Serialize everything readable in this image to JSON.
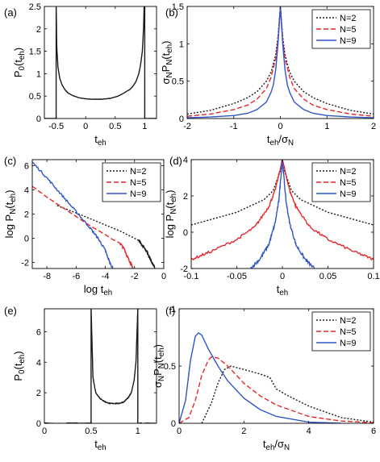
{
  "colors": {
    "N2": "#1a1a1a",
    "N5": "#e8262a",
    "N9": "#2f56c9",
    "P0": "#1a1a1a"
  },
  "chart_data": [
    {
      "id": "a",
      "type": "line",
      "panel_label": "(a)",
      "xlabel_main": "t",
      "xlabel_sub": "eh",
      "ylabel_parts": [
        [
          "P",
          ""
        ],
        [
          "0",
          "sub"
        ],
        [
          "(t",
          ""
        ],
        [
          "eh",
          "sub"
        ],
        [
          ")",
          ""
        ]
      ],
      "xlim": [
        -0.7,
        1.2
      ],
      "ylim": [
        0,
        2.5
      ],
      "xticks": [
        -0.5,
        0,
        0.5,
        1
      ],
      "xticklabels": [
        "-0.5",
        "0",
        "0.5",
        "1"
      ],
      "yticks": [
        0,
        0.5,
        1,
        1.5,
        2,
        2.5
      ],
      "yticklabels": [
        "0",
        "0.5",
        "1",
        "1.5",
        "2",
        "2.5"
      ],
      "legend": [],
      "series": [
        {
          "color": "P0",
          "dash": "",
          "noise": 0.01,
          "x": [
            -0.7,
            -0.52,
            -0.5,
            -0.5,
            -0.49,
            -0.47,
            -0.44,
            -0.4,
            -0.35,
            -0.3,
            -0.2,
            -0.1,
            0,
            0.1,
            0.2,
            0.25,
            0.35,
            0.45,
            0.55,
            0.65,
            0.75,
            0.8,
            0.85,
            0.9,
            0.93,
            0.96,
            0.98,
            0.99,
            1.0,
            1.0,
            1.03,
            1.2
          ],
          "y": [
            0,
            0,
            0,
            2.5,
            1.6,
            1.15,
            0.9,
            0.75,
            0.64,
            0.57,
            0.5,
            0.46,
            0.44,
            0.43,
            0.43,
            0.43,
            0.44,
            0.46,
            0.5,
            0.57,
            0.65,
            0.72,
            0.82,
            1.0,
            1.2,
            1.5,
            2.0,
            2.5,
            2.5,
            0,
            0,
            0
          ]
        }
      ]
    },
    {
      "id": "b",
      "type": "line",
      "panel_label": "(b)",
      "xlabel_parts": [
        [
          "t",
          ""
        ],
        [
          "eh",
          "sub"
        ],
        [
          "/σ",
          ""
        ],
        [
          "N",
          "sub"
        ]
      ],
      "ylabel_parts": [
        [
          "σ",
          ""
        ],
        [
          "N",
          "sub"
        ],
        [
          "P",
          ""
        ],
        [
          "N",
          "sub"
        ],
        [
          "(t",
          ""
        ],
        [
          "eh",
          "sub"
        ],
        [
          ")",
          ""
        ]
      ],
      "xlim": [
        -2,
        2
      ],
      "ylim": [
        0,
        1.5
      ],
      "xticks": [
        -2,
        -1,
        0,
        1,
        2
      ],
      "xticklabels": [
        "-2",
        "-1",
        "0",
        "1",
        "2"
      ],
      "yticks": [
        0,
        0.5,
        1,
        1.5
      ],
      "yticklabels": [
        "0",
        "0.5",
        "1",
        "1.5"
      ],
      "legend": [
        "N=2",
        "N=5",
        "N=9"
      ],
      "series": [
        {
          "color": "N2",
          "dash": "2,2",
          "noise": 0.004,
          "x": [
            -2,
            -1.5,
            -1,
            -0.7,
            -0.5,
            -0.3,
            -0.2,
            -0.1,
            -0.05,
            0,
            0.05,
            0.1,
            0.2,
            0.3,
            0.5,
            0.7,
            1,
            1.5,
            2
          ],
          "y": [
            0.06,
            0.11,
            0.2,
            0.28,
            0.36,
            0.5,
            0.62,
            0.85,
            1.1,
            1.5,
            1.1,
            0.85,
            0.62,
            0.5,
            0.36,
            0.28,
            0.2,
            0.11,
            0.06
          ]
        },
        {
          "color": "N5",
          "dash": "6,3",
          "noise": 0,
          "x": [
            -2,
            -1.5,
            -1,
            -0.7,
            -0.5,
            -0.3,
            -0.2,
            -0.1,
            -0.05,
            0,
            0.05,
            0.1,
            0.2,
            0.3,
            0.5,
            0.7,
            1,
            1.5,
            2
          ],
          "y": [
            0.03,
            0.06,
            0.12,
            0.18,
            0.26,
            0.4,
            0.55,
            0.8,
            1.05,
            1.5,
            1.05,
            0.8,
            0.55,
            0.4,
            0.26,
            0.18,
            0.12,
            0.06,
            0.03
          ]
        },
        {
          "color": "N9",
          "dash": "",
          "noise": 0,
          "x": [
            -2,
            -1.5,
            -1,
            -0.7,
            -0.5,
            -0.3,
            -0.2,
            -0.15,
            -0.1,
            -0.05,
            0,
            0.05,
            0.1,
            0.15,
            0.2,
            0.3,
            0.5,
            0.7,
            1,
            1.5,
            2
          ],
          "y": [
            0.01,
            0.02,
            0.04,
            0.07,
            0.12,
            0.22,
            0.35,
            0.45,
            0.65,
            1.0,
            1.5,
            1.0,
            0.65,
            0.45,
            0.35,
            0.22,
            0.12,
            0.07,
            0.04,
            0.02,
            0.01
          ]
        }
      ]
    },
    {
      "id": "c",
      "type": "line",
      "panel_label": "(c)",
      "xlabel_parts": [
        [
          "log t",
          ""
        ],
        [
          "eh",
          "sub"
        ]
      ],
      "ylabel_parts": [
        [
          "log P",
          ""
        ],
        [
          "N",
          "sub"
        ],
        [
          "(t",
          ""
        ],
        [
          "eh",
          "sub"
        ],
        [
          ")",
          ""
        ]
      ],
      "xlim": [
        -9,
        0
      ],
      "ylim": [
        -2.5,
        6.5
      ],
      "xticks": [
        -8,
        -6,
        -4,
        -2,
        0
      ],
      "xticklabels": [
        "-8",
        "-6",
        "-4",
        "-2",
        "0"
      ],
      "yticks": [
        -2,
        0,
        2,
        4,
        6
      ],
      "yticklabels": [
        "-2",
        "0",
        "2",
        "4",
        "6"
      ],
      "legend": [
        "N=2",
        "N=5",
        "N=9"
      ],
      "series": [
        {
          "color": "N2",
          "dash": "2,2",
          "noise": 0,
          "x": [
            -7.3,
            -6,
            -5,
            -4,
            -3,
            -2.5,
            -2,
            -1.7
          ],
          "y": [
            2.7,
            2.1,
            1.6,
            1.1,
            0.6,
            0.3,
            0,
            -0.2
          ]
        },
        {
          "color": "N2",
          "dash": "",
          "noise": 0.12,
          "x": [
            -1.7,
            -1.5,
            -1.2,
            -1,
            -0.8,
            -0.6
          ],
          "y": [
            -0.2,
            -0.5,
            -1.0,
            -1.5,
            -2.0,
            -2.5
          ]
        },
        {
          "color": "N5",
          "dash": "6,3",
          "noise": 0,
          "x": [
            -9,
            -8,
            -7,
            -6,
            -5,
            -4,
            -3.5,
            -3
          ],
          "y": [
            4.3,
            3.4,
            2.6,
            1.8,
            1.0,
            0.3,
            -0.1,
            -0.4
          ]
        },
        {
          "color": "N5",
          "dash": "",
          "noise": 0.12,
          "x": [
            -3,
            -2.7,
            -2.5,
            -2.3,
            -2.1
          ],
          "y": [
            -0.4,
            -0.9,
            -1.5,
            -2.0,
            -2.5
          ]
        },
        {
          "color": "N9",
          "dash": "",
          "noise": 0.1,
          "x": [
            -9,
            -8,
            -7,
            -6,
            -5,
            -4.5,
            -4,
            -3.8,
            -3.5
          ],
          "y": [
            6.3,
            5.0,
            3.6,
            2.2,
            0.8,
            0.0,
            -1.0,
            -1.7,
            -2.5
          ]
        }
      ]
    },
    {
      "id": "d",
      "type": "line",
      "panel_label": "(d)",
      "xlabel_parts": [
        [
          "t",
          ""
        ],
        [
          "eh",
          "sub"
        ]
      ],
      "ylabel_parts": [
        [
          "log P",
          ""
        ],
        [
          "N",
          "sub"
        ],
        [
          "(t",
          ""
        ],
        [
          "eh",
          "sub"
        ],
        [
          ")",
          ""
        ]
      ],
      "xlim": [
        -0.1,
        0.1
      ],
      "ylim": [
        -2,
        4
      ],
      "xticks": [
        -0.1,
        -0.05,
        0,
        0.05,
        0.1
      ],
      "xticklabels": [
        "-0.1",
        "-0.05",
        "0",
        "0.05",
        "0.1"
      ],
      "yticks": [
        -2,
        0,
        2,
        4
      ],
      "yticklabels": [
        "-2",
        "0",
        "2",
        "4"
      ],
      "legend": [
        "N=2",
        "N=5",
        "N=9"
      ],
      "series": [
        {
          "color": "N2",
          "dash": "2,2",
          "noise": 0,
          "x": [
            -0.1,
            -0.05,
            -0.02,
            -0.01,
            0,
            0.01,
            0.02,
            0.05,
            0.1
          ],
          "y": [
            0.4,
            1.1,
            1.8,
            2.3,
            3.7,
            2.3,
            1.8,
            1.1,
            0.4
          ]
        },
        {
          "color": "N5",
          "dash": "",
          "noise": 0.12,
          "x": [
            -0.1,
            -0.08,
            -0.05,
            -0.03,
            -0.015,
            -0.008,
            0,
            0.008,
            0.015,
            0.03,
            0.05,
            0.08,
            0.1
          ],
          "y": [
            -1.5,
            -1.1,
            -0.4,
            0.3,
            1.4,
            2.3,
            4.0,
            2.3,
            1.4,
            0.3,
            -0.4,
            -1.1,
            -1.5
          ]
        },
        {
          "color": "N9",
          "dash": "",
          "noise": 0.15,
          "x": [
            -0.035,
            -0.025,
            -0.015,
            -0.008,
            -0.004,
            0,
            0.004,
            0.008,
            0.015,
            0.025,
            0.035
          ],
          "y": [
            -2.0,
            -1.5,
            -0.7,
            0.5,
            1.7,
            4.0,
            1.7,
            0.5,
            -0.7,
            -1.5,
            -2.0
          ]
        }
      ]
    },
    {
      "id": "e",
      "type": "line",
      "panel_label": "(e)",
      "xlabel_parts": [
        [
          "t",
          ""
        ],
        [
          "eh",
          "sub"
        ]
      ],
      "ylabel_parts": [
        [
          "P",
          ""
        ],
        [
          "0",
          "sub"
        ],
        [
          "(t",
          ""
        ],
        [
          "eh",
          "sub"
        ],
        [
          ")",
          ""
        ]
      ],
      "xlim": [
        0,
        1.2
      ],
      "ylim": [
        0,
        7.5
      ],
      "xticks": [
        0,
        0.5,
        1
      ],
      "xticklabels": [
        "0",
        "0.5",
        "1"
      ],
      "yticks": [
        0,
        2,
        4,
        6
      ],
      "yticklabels": [
        "0",
        "2",
        "4",
        "6"
      ],
      "legend": [],
      "series": [
        {
          "color": "P0",
          "dash": "",
          "noise": 0.03,
          "x": [
            0,
            0.5,
            0.5,
            0.52,
            0.55,
            0.6,
            0.65,
            0.7,
            0.75,
            0.8,
            0.85,
            0.9,
            0.93,
            0.96,
            0.98,
            1.0,
            1.0,
            1.2
          ],
          "y": [
            0,
            0,
            7.5,
            3.0,
            2.0,
            1.6,
            1.4,
            1.3,
            1.3,
            1.3,
            1.4,
            1.7,
            2.0,
            2.8,
            4.0,
            7.5,
            0,
            0
          ]
        }
      ]
    },
    {
      "id": "f",
      "type": "line",
      "panel_label": "(f)",
      "xlabel_parts": [
        [
          "t",
          ""
        ],
        [
          "eh",
          "sub"
        ],
        [
          "/σ",
          ""
        ],
        [
          "N",
          "sub"
        ]
      ],
      "ylabel_parts": [
        [
          "σ",
          ""
        ],
        [
          "N",
          "sub"
        ],
        [
          "P",
          ""
        ],
        [
          "N",
          "sub"
        ],
        [
          "(t",
          ""
        ],
        [
          "eh",
          "sub"
        ],
        [
          ")",
          ""
        ]
      ],
      "xlim": [
        0,
        6
      ],
      "ylim": [
        0,
        1
      ],
      "xticks": [
        0,
        2,
        4,
        6
      ],
      "xticklabels": [
        "0",
        "2",
        "4",
        "6"
      ],
      "yticks": [
        0,
        0.5,
        1
      ],
      "yticklabels": [
        "0",
        "0.5",
        "1"
      ],
      "legend": [
        "N=2",
        "N=5",
        "N=9"
      ],
      "series": [
        {
          "color": "N2",
          "dash": "2,2",
          "noise": 0,
          "x": [
            0.7,
            1.0,
            1.2,
            1.4,
            1.6,
            2.0,
            2.5,
            2.8,
            3.0,
            3.3,
            4.0,
            5.0,
            6.0
          ],
          "y": [
            0,
            0.18,
            0.35,
            0.47,
            0.5,
            0.47,
            0.43,
            0.4,
            0.3,
            0.25,
            0.15,
            0.05,
            0.01
          ]
        },
        {
          "color": "N5",
          "dash": "6,3",
          "noise": 0,
          "x": [
            0,
            0.3,
            0.5,
            0.7,
            0.9,
            1.0,
            1.2,
            1.5,
            2.0,
            2.5,
            3.0,
            4.0,
            5.0,
            6.0
          ],
          "y": [
            0,
            0.05,
            0.2,
            0.42,
            0.55,
            0.58,
            0.57,
            0.5,
            0.35,
            0.24,
            0.16,
            0.06,
            0.02,
            0.005
          ]
        },
        {
          "color": "N9",
          "dash": "",
          "noise": 0,
          "x": [
            0,
            0.2,
            0.35,
            0.5,
            0.6,
            0.7,
            0.9,
            1.2,
            1.5,
            2.0,
            2.5,
            3.0,
            4.0,
            5.0
          ],
          "y": [
            0,
            0.2,
            0.55,
            0.76,
            0.79,
            0.77,
            0.65,
            0.5,
            0.37,
            0.22,
            0.12,
            0.06,
            0.01,
            0
          ]
        }
      ]
    }
  ]
}
